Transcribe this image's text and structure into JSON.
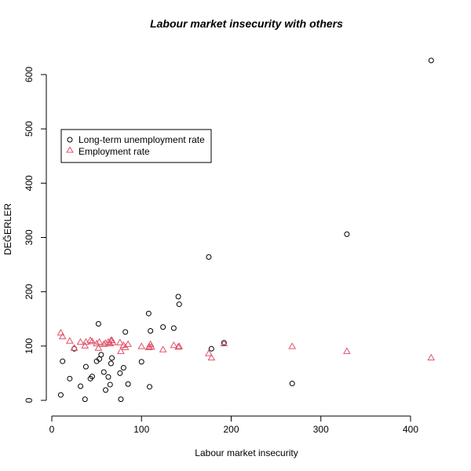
{
  "chart_data": {
    "type": "scatter",
    "title": "Labour market insecurity with others",
    "xlabel": "Labour market insecurity",
    "ylabel": "DEĞERLER",
    "xlim": [
      0,
      420
    ],
    "ylim": [
      0,
      600
    ],
    "xticks": [
      0,
      100,
      200,
      300,
      400
    ],
    "yticks": [
      0,
      100,
      200,
      300,
      400,
      500,
      600
    ],
    "grid": false,
    "legend_position": "upper-left",
    "series": [
      {
        "name": "Long-term unemployment rate",
        "marker": "circle",
        "color": "#000000",
        "points": [
          [
            10,
            10
          ],
          [
            12,
            72
          ],
          [
            20,
            40
          ],
          [
            25,
            95
          ],
          [
            32,
            26
          ],
          [
            37,
            2
          ],
          [
            38,
            62
          ],
          [
            43,
            40
          ],
          [
            45,
            44
          ],
          [
            50,
            72
          ],
          [
            52,
            141
          ],
          [
            53,
            76
          ],
          [
            55,
            84
          ],
          [
            58,
            52
          ],
          [
            60,
            19
          ],
          [
            63,
            43
          ],
          [
            65,
            29
          ],
          [
            66,
            68
          ],
          [
            67,
            78
          ],
          [
            76,
            50
          ],
          [
            77,
            2
          ],
          [
            80,
            60
          ],
          [
            82,
            126
          ],
          [
            85,
            30
          ],
          [
            100,
            71
          ],
          [
            108,
            160
          ],
          [
            109,
            25
          ],
          [
            110,
            128
          ],
          [
            124,
            135
          ],
          [
            136,
            133
          ],
          [
            141,
            191
          ],
          [
            142,
            177
          ],
          [
            175,
            264
          ],
          [
            178,
            95
          ],
          [
            192,
            106
          ],
          [
            268,
            31
          ],
          [
            329,
            306
          ],
          [
            423,
            626
          ]
        ]
      },
      {
        "name": "Employment rate",
        "marker": "triangle",
        "color": "#df536b",
        "points": [
          [
            10,
            124
          ],
          [
            12,
            117
          ],
          [
            20,
            109
          ],
          [
            25,
            96
          ],
          [
            32,
            107
          ],
          [
            37,
            100
          ],
          [
            38,
            107
          ],
          [
            43,
            110
          ],
          [
            45,
            108
          ],
          [
            50,
            104
          ],
          [
            52,
            96
          ],
          [
            53,
            107
          ],
          [
            58,
            103
          ],
          [
            60,
            105
          ],
          [
            63,
            107
          ],
          [
            65,
            104
          ],
          [
            66,
            110
          ],
          [
            67,
            110
          ],
          [
            68,
            106
          ],
          [
            76,
            106
          ],
          [
            77,
            90
          ],
          [
            80,
            101
          ],
          [
            82,
            97
          ],
          [
            85,
            103
          ],
          [
            100,
            99
          ],
          [
            108,
            97
          ],
          [
            109,
            98
          ],
          [
            110,
            103
          ],
          [
            111,
            98
          ],
          [
            124,
            93
          ],
          [
            136,
            101
          ],
          [
            141,
            98
          ],
          [
            142,
            99
          ],
          [
            175,
            86
          ],
          [
            178,
            78
          ],
          [
            192,
            104
          ],
          [
            268,
            99
          ],
          [
            329,
            90
          ],
          [
            423,
            78
          ]
        ]
      }
    ]
  }
}
